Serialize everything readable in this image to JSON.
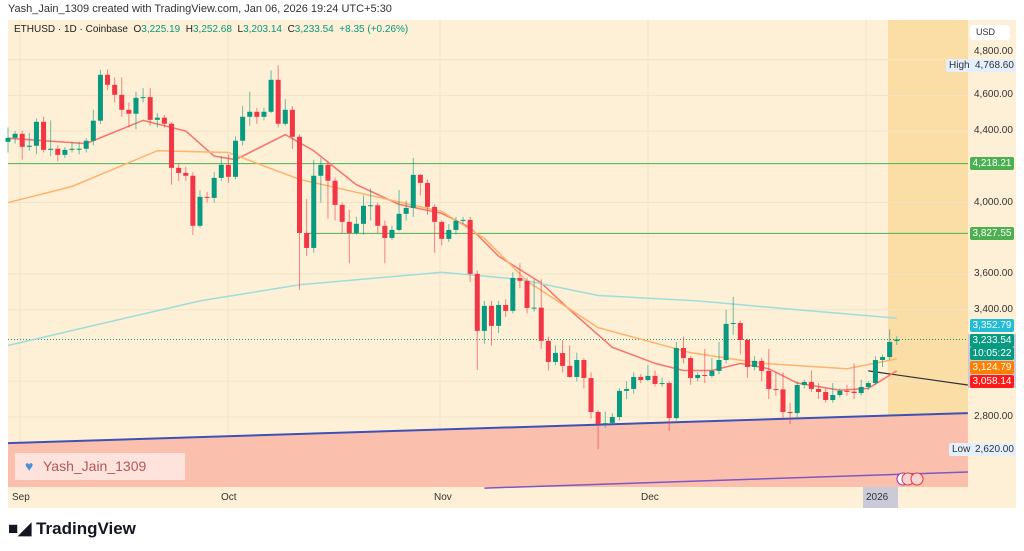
{
  "header": {
    "credit": "Yash_Jain_1309 created with TradingView.com, Jan 06, 2026 19:24 UTC+5:30"
  },
  "legend": {
    "symbol": "ETHUSD · 1D · Coinbase",
    "o_label": "O",
    "o": "3,225.19",
    "h_label": "H",
    "h": "3,252.68",
    "l_label": "L",
    "l": "3,203.14",
    "c_label": "C",
    "c": "3,233.54",
    "change": "+8.35 (+0.26%)"
  },
  "price_axis": {
    "currency": "USD",
    "ticks": [
      "4,800.00",
      "4,600.00",
      "4,400.00",
      "4,000.00",
      "3,600.00",
      "3,400.00",
      "3,000.00",
      "2,800.00"
    ]
  },
  "badges": {
    "high_label": "High",
    "high": "4,768.60",
    "level1": "4,218.21",
    "level2": "3,827.55",
    "ma_slow": "3,352.79",
    "last": "3,233.54",
    "countdown": "10:05:22",
    "ma_mid": "3,124.79",
    "ma_fast": "3,058.14",
    "low_label": "Low",
    "low": "2,620.00"
  },
  "time_axis": {
    "labels": [
      "Sep",
      "Oct",
      "Nov",
      "Dec",
      "2026"
    ]
  },
  "watermark": {
    "text": "Yash_Jain_1309"
  },
  "footer": {
    "brand": "TradingView"
  },
  "colors": {
    "up": "#089981",
    "down": "#f23645",
    "ma_fast": "#f7736b",
    "ma_mid": "#ffb26b",
    "ma_slow": "#9fdcdc",
    "levels": "#4caf50",
    "trendline": "#3f51b5",
    "zone": "#fbc0ad"
  },
  "chart_data": {
    "type": "candlestick",
    "symbol": "ETHUSD",
    "interval": "1D",
    "exchange": "Coinbase",
    "ylim": [
      2400,
      4970
    ],
    "columns": [
      "open",
      "high",
      "low",
      "close"
    ],
    "candles": [
      [
        4340,
        4420,
        4280,
        4362
      ],
      [
        4362,
        4400,
        4330,
        4385
      ],
      [
        4385,
        4400,
        4240,
        4312
      ],
      [
        4312,
        4390,
        4290,
        4318
      ],
      [
        4318,
        4470,
        4270,
        4452
      ],
      [
        4452,
        4480,
        4280,
        4295
      ],
      [
        4295,
        4460,
        4260,
        4301
      ],
      [
        4301,
        4320,
        4230,
        4267
      ],
      [
        4267,
        4310,
        4250,
        4295
      ],
      [
        4295,
        4340,
        4280,
        4301
      ],
      [
        4301,
        4340,
        4270,
        4301
      ],
      [
        4301,
        4360,
        4280,
        4346
      ],
      [
        4346,
        4520,
        4320,
        4458
      ],
      [
        4458,
        4743,
        4440,
        4715
      ],
      [
        4715,
        4745,
        4630,
        4659
      ],
      [
        4659,
        4700,
        4560,
        4603
      ],
      [
        4603,
        4700,
        4480,
        4519
      ],
      [
        4519,
        4560,
        4420,
        4497
      ],
      [
        4497,
        4620,
        4410,
        4586
      ],
      [
        4586,
        4640,
        4560,
        4590
      ],
      [
        4590,
        4640,
        4430,
        4463
      ],
      [
        4463,
        4500,
        4420,
        4475
      ],
      [
        4475,
        4490,
        4420,
        4441
      ],
      [
        4441,
        4450,
        4100,
        4194
      ],
      [
        4194,
        4220,
        4120,
        4166
      ],
      [
        4166,
        4200,
        4120,
        4150
      ],
      [
        4150,
        4170,
        3819,
        3870
      ],
      [
        3870,
        4070,
        3860,
        4032
      ],
      [
        4032,
        4060,
        4000,
        4026
      ],
      [
        4026,
        4170,
        4000,
        4138
      ],
      [
        4138,
        4260,
        4120,
        4211
      ],
      [
        4211,
        4270,
        4110,
        4144
      ],
      [
        4144,
        4370,
        4130,
        4346
      ],
      [
        4346,
        4540,
        4320,
        4480
      ],
      [
        4480,
        4620,
        4430,
        4508
      ],
      [
        4508,
        4530,
        4440,
        4480
      ],
      [
        4480,
        4530,
        4460,
        4508
      ],
      [
        4508,
        4740,
        4500,
        4687
      ],
      [
        4687,
        4768,
        4420,
        4441
      ],
      [
        4441,
        4580,
        4430,
        4519
      ],
      [
        4519,
        4540,
        4300,
        4368
      ],
      [
        4368,
        4380,
        3511,
        3830
      ],
      [
        3830,
        4020,
        3700,
        3746
      ],
      [
        3746,
        4240,
        3720,
        4150
      ],
      [
        4150,
        4250,
        4000,
        4211
      ],
      [
        4211,
        4230,
        3910,
        4122
      ],
      [
        4122,
        4140,
        3900,
        3987
      ],
      [
        3987,
        4000,
        3830,
        3892
      ],
      [
        3892,
        3960,
        3660,
        3830
      ],
      [
        3830,
        3920,
        3820,
        3881
      ],
      [
        3881,
        4040,
        3820,
        3982
      ],
      [
        3982,
        4080,
        3900,
        3985
      ],
      [
        3985,
        4000,
        3830,
        3870
      ],
      [
        3870,
        3900,
        3660,
        3802
      ],
      [
        3802,
        3870,
        3790,
        3847
      ],
      [
        3847,
        4070,
        3840,
        3937
      ],
      [
        3937,
        4010,
        3900,
        3970
      ],
      [
        3970,
        4250,
        3920,
        4155
      ],
      [
        4155,
        4160,
        4040,
        4110
      ],
      [
        4110,
        4130,
        3930,
        3976
      ],
      [
        3976,
        3990,
        3720,
        3892
      ],
      [
        3892,
        3900,
        3760,
        3797
      ],
      [
        3797,
        3880,
        3780,
        3847
      ],
      [
        3847,
        3920,
        3820,
        3898
      ],
      [
        3898,
        3920,
        3880,
        3903
      ],
      [
        3903,
        3920,
        3555,
        3601
      ],
      [
        3601,
        3620,
        3063,
        3282
      ],
      [
        3282,
        3450,
        3210,
        3422
      ],
      [
        3422,
        3450,
        3200,
        3310
      ],
      [
        3310,
        3450,
        3270,
        3427
      ],
      [
        3427,
        3460,
        3360,
        3394
      ],
      [
        3394,
        3610,
        3380,
        3578
      ],
      [
        3578,
        3660,
        3520,
        3562
      ],
      [
        3562,
        3580,
        3380,
        3410
      ],
      [
        3410,
        3570,
        3390,
        3412
      ],
      [
        3412,
        3570,
        3180,
        3226
      ],
      [
        3226,
        3250,
        3060,
        3108
      ],
      [
        3108,
        3200,
        3090,
        3158
      ],
      [
        3158,
        3230,
        3050,
        3086
      ],
      [
        3086,
        3200,
        3020,
        3024
      ],
      [
        3024,
        3160,
        3000,
        3119
      ],
      [
        3119,
        3130,
        2960,
        3018
      ],
      [
        3018,
        3050,
        2790,
        2828
      ],
      [
        2828,
        2840,
        2620,
        2761
      ],
      [
        2761,
        2830,
        2740,
        2766
      ],
      [
        2766,
        2820,
        2760,
        2800
      ],
      [
        2800,
        2960,
        2780,
        2946
      ],
      [
        2946,
        3000,
        2900,
        2957
      ],
      [
        2957,
        3050,
        2930,
        3024
      ],
      [
        3024,
        3040,
        2990,
        3007
      ],
      [
        3007,
        3090,
        3000,
        3030
      ],
      [
        3030,
        3060,
        2970,
        2985
      ],
      [
        2985,
        3020,
        2970,
        2990
      ],
      [
        2990,
        3000,
        2722,
        2794
      ],
      [
        2794,
        3220,
        2780,
        3186
      ],
      [
        3186,
        3250,
        3100,
        3130
      ],
      [
        3130,
        3140,
        2980,
        3018
      ],
      [
        3018,
        3050,
        3000,
        3035
      ],
      [
        3035,
        3180,
        2990,
        3030
      ],
      [
        3030,
        3130,
        3020,
        3058
      ],
      [
        3058,
        3220,
        3040,
        3119
      ],
      [
        3119,
        3400,
        3100,
        3321
      ],
      [
        3321,
        3472,
        3260,
        3326
      ],
      [
        3326,
        3340,
        3150,
        3231
      ],
      [
        3231,
        3240,
        3020,
        3080
      ],
      [
        3080,
        3140,
        3060,
        3114
      ],
      [
        3114,
        3130,
        3000,
        3058
      ],
      [
        3058,
        3180,
        2900,
        2957
      ],
      [
        2957,
        3050,
        2920,
        2955
      ],
      [
        2955,
        3050,
        2790,
        2828
      ],
      [
        2828,
        2880,
        2760,
        2822
      ],
      [
        2822,
        3000,
        2800,
        2979
      ],
      [
        2979,
        3010,
        2960,
        2996
      ],
      [
        2996,
        3060,
        2940,
        2957
      ],
      [
        2957,
        2990,
        2900,
        2940
      ],
      [
        2940,
        2960,
        2880,
        2895
      ],
      [
        2895,
        2990,
        2880,
        2923
      ],
      [
        2923,
        2960,
        2910,
        2946
      ],
      [
        2946,
        2980,
        2920,
        2942
      ],
      [
        2942,
        3100,
        2900,
        2934
      ],
      [
        2934,
        3010,
        2920,
        2968
      ],
      [
        2968,
        3000,
        2950,
        2990
      ],
      [
        2990,
        3140,
        2980,
        3119
      ],
      [
        3119,
        3150,
        3080,
        3136
      ],
      [
        3136,
        3290,
        3120,
        3220
      ],
      [
        3225.19,
        3252.68,
        3203.14,
        3233.54
      ]
    ],
    "moving_averages": [
      {
        "role": "fast",
        "last": 3058.14,
        "points": [
          [
            1,
            4360
          ],
          [
            12,
            4330
          ],
          [
            20,
            4460
          ],
          [
            26,
            4400
          ],
          [
            30,
            4260
          ],
          [
            33,
            4240
          ],
          [
            40,
            4380
          ],
          [
            44,
            4290
          ],
          [
            50,
            4100
          ],
          [
            56,
            3990
          ],
          [
            62,
            3940
          ],
          [
            66,
            3860
          ],
          [
            70,
            3700
          ],
          [
            76,
            3550
          ],
          [
            80,
            3400
          ],
          [
            86,
            3190
          ],
          [
            92,
            3100
          ],
          [
            96,
            3060
          ],
          [
            100,
            3060
          ],
          [
            104,
            3100
          ],
          [
            108,
            3070
          ],
          [
            112,
            2990
          ],
          [
            118,
            2950
          ],
          [
            122,
            2960
          ],
          [
            126,
            3058
          ]
        ]
      },
      {
        "role": "mid",
        "last": 3124.79,
        "points": [
          [
            1,
            4000
          ],
          [
            10,
            4090
          ],
          [
            22,
            4290
          ],
          [
            32,
            4280
          ],
          [
            42,
            4130
          ],
          [
            53,
            4030
          ],
          [
            62,
            3950
          ],
          [
            68,
            3800
          ],
          [
            74,
            3560
          ],
          [
            84,
            3300
          ],
          [
            97,
            3160
          ],
          [
            107,
            3100
          ],
          [
            119,
            3070
          ],
          [
            126,
            3125
          ]
        ]
      },
      {
        "role": "slow",
        "last": 3352.79,
        "points": [
          [
            1,
            3200
          ],
          [
            15,
            3330
          ],
          [
            28,
            3450
          ],
          [
            42,
            3540
          ],
          [
            62,
            3610
          ],
          [
            73,
            3570
          ],
          [
            84,
            3480
          ],
          [
            98,
            3450
          ],
          [
            112,
            3400
          ],
          [
            126,
            3353
          ]
        ]
      }
    ],
    "horizontal_levels": [
      {
        "price": 4218.21,
        "from": 1
      },
      {
        "price": 3827.55,
        "from": 43
      }
    ],
    "trendline_support": [
      [
        1,
        2654
      ],
      [
        136,
        2822
      ]
    ],
    "trendline_lower": [
      [
        68,
        2402
      ],
      [
        136,
        2492
      ]
    ],
    "trendline_black": [
      [
        122,
        3058
      ],
      [
        136,
        2979
      ]
    ],
    "last_price": 3233.54,
    "high": 4768.6,
    "low": 2620.0
  }
}
